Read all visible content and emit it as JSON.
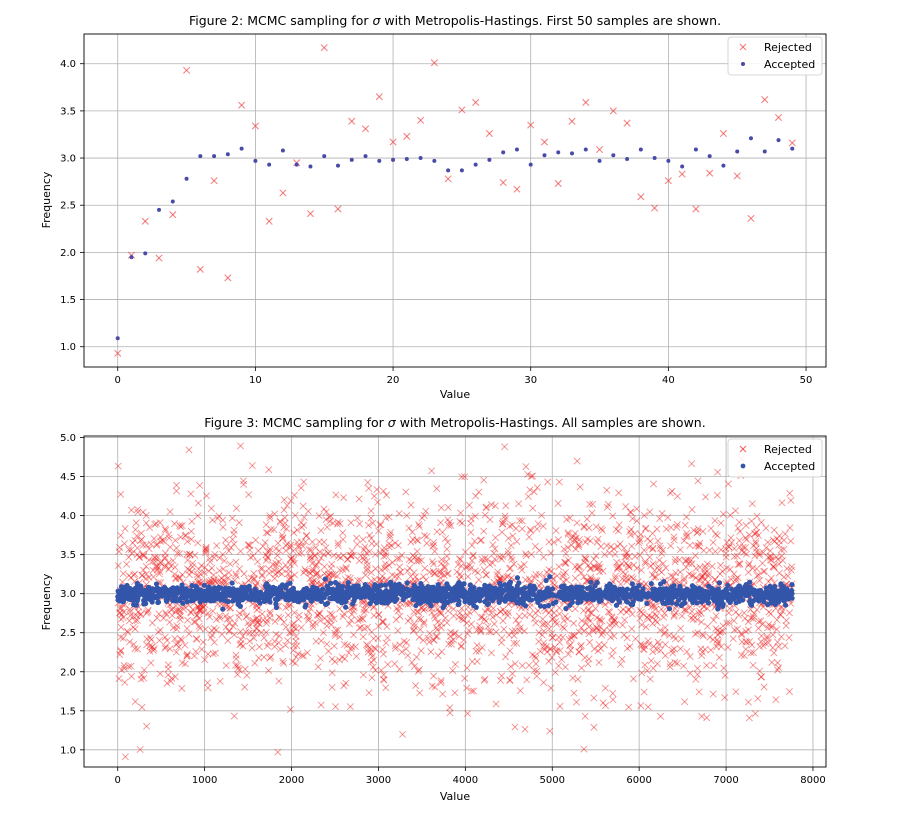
{
  "chart_data": [
    {
      "type": "scatter",
      "title_prefix": "Figure 2: MCMC sampling for ",
      "title_symbol": "σ",
      "title_suffix": " with Metropolis-Hastings. First 50 samples are shown.",
      "xlabel": "Value",
      "ylabel": "Frequency",
      "xlim": [
        -2.45,
        51.45
      ],
      "ylim": [
        0.785,
        4.315
      ],
      "xticks": [
        0,
        10,
        20,
        30,
        40,
        50
      ],
      "yticks": [
        1.0,
        1.5,
        2.0,
        2.5,
        3.0,
        3.5,
        4.0
      ],
      "grid": true,
      "legend": "top-right",
      "series": [
        {
          "name": "Rejected",
          "marker": "x",
          "color": "#ee4444",
          "x": [
            0,
            1,
            2,
            3,
            4,
            5,
            6,
            7,
            8,
            9,
            10,
            11,
            12,
            13,
            14,
            15,
            16,
            17,
            18,
            19,
            20,
            21,
            22,
            23,
            24,
            25,
            26,
            27,
            28,
            29,
            30,
            31,
            32,
            33,
            34,
            35,
            36,
            37,
            38,
            39,
            40,
            41,
            42,
            43,
            44,
            45,
            46,
            47,
            48,
            49
          ],
          "y": [
            0.93,
            1.97,
            2.33,
            1.94,
            2.4,
            3.93,
            1.82,
            2.76,
            1.73,
            3.56,
            3.34,
            2.33,
            2.63,
            2.95,
            2.41,
            4.17,
            2.46,
            3.39,
            3.31,
            3.65,
            3.17,
            3.23,
            3.4,
            4.01,
            2.78,
            3.51,
            3.59,
            3.26,
            2.74,
            2.67,
            3.35,
            3.17,
            2.73,
            3.39,
            3.59,
            3.09,
            3.5,
            3.37,
            2.59,
            2.47,
            2.76,
            2.83,
            2.46,
            2.84,
            3.26,
            2.81,
            2.36,
            3.62,
            3.43,
            3.16
          ]
        },
        {
          "name": "Accepted",
          "marker": "o",
          "color": "#4a4aa8",
          "x": [
            0,
            1,
            2,
            3,
            4,
            5,
            6,
            7,
            8,
            9,
            10,
            11,
            12,
            13,
            14,
            15,
            16,
            17,
            18,
            19,
            20,
            21,
            22,
            23,
            24,
            25,
            26,
            27,
            28,
            29,
            30,
            31,
            32,
            33,
            34,
            35,
            36,
            37,
            38,
            39,
            40,
            41,
            42,
            43,
            44,
            45,
            46,
            47,
            48,
            49
          ],
          "y": [
            1.09,
            1.95,
            1.99,
            2.45,
            2.54,
            2.78,
            3.02,
            3.02,
            3.04,
            3.1,
            2.97,
            2.93,
            3.08,
            2.93,
            2.91,
            3.02,
            2.92,
            2.98,
            3.02,
            2.97,
            2.98,
            2.99,
            3.0,
            2.97,
            2.87,
            2.87,
            2.93,
            2.98,
            3.06,
            3.09,
            2.93,
            3.03,
            3.06,
            3.05,
            3.09,
            2.97,
            3.03,
            2.99,
            3.09,
            3.0,
            2.97,
            2.91,
            3.09,
            3.02,
            2.92,
            3.07,
            3.21,
            3.07,
            3.19,
            3.1
          ]
        }
      ]
    },
    {
      "type": "scatter",
      "title_prefix": "Figure 3: MCMC sampling for ",
      "title_symbol": "σ",
      "title_suffix": " with Metropolis-Hastings. All samples are shown.",
      "xlabel": "Value",
      "ylabel": "Frequency",
      "xlim": [
        -388,
        8150
      ],
      "ylim": [
        0.78,
        5.02
      ],
      "xticks": [
        0,
        1000,
        2000,
        3000,
        4000,
        5000,
        6000,
        7000,
        8000
      ],
      "yticks": [
        1.0,
        1.5,
        2.0,
        2.5,
        3.0,
        3.5,
        4.0,
        4.5,
        5.0
      ],
      "grid": true,
      "legend": "top-right",
      "n_samples": 7762,
      "series": [
        {
          "name": "Rejected",
          "marker": "x",
          "color": "#ee2222",
          "distribution": {
            "mean": 3.0,
            "sd": 0.6,
            "min": 0.9,
            "max": 4.9
          }
        },
        {
          "name": "Accepted",
          "marker": "o",
          "color": "#3355aa",
          "distribution": {
            "mean": 2.99,
            "sd": 0.06,
            "min": 2.75,
            "max": 3.3
          }
        }
      ]
    }
  ]
}
